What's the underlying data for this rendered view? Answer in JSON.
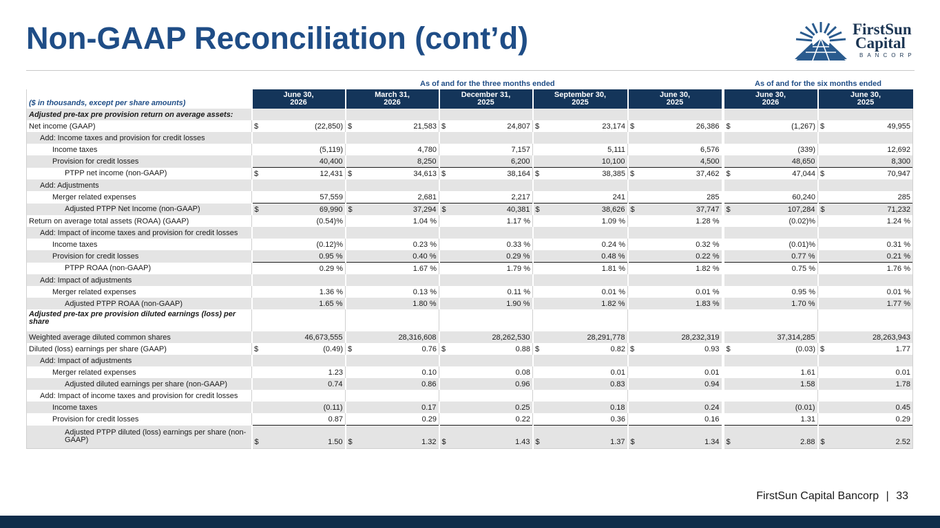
{
  "title": "Non-GAAP Reconciliation (cont’d)",
  "logo": {
    "line1": "FirstSun",
    "line2": "Capital",
    "line3": "BANCORP"
  },
  "groups": {
    "three_months": "As of and for the three months ended",
    "six_months": "As of and for the six months ended"
  },
  "corner_label": "($ in thousands, except per share amounts)",
  "columns": [
    {
      "line1": "June 30,",
      "line2": "2026"
    },
    {
      "line1": "March 31,",
      "line2": "2026"
    },
    {
      "line1": "December 31,",
      "line2": "2025"
    },
    {
      "line1": "September 30,",
      "line2": "2025"
    },
    {
      "line1": "June 30,",
      "line2": "2025"
    },
    {
      "line1": "June 30,",
      "line2": "2026"
    },
    {
      "line1": "June 30,",
      "line2": "2025"
    }
  ],
  "rows": [
    {
      "label": "Adjusted pre-tax pre provision return on average assets:",
      "style": "sec",
      "indent": 0,
      "values": [
        "",
        "",
        "",
        "",
        "",
        "",
        ""
      ]
    },
    {
      "label": "Net income (GAAP)",
      "indent": 0,
      "dollar": true,
      "values": [
        "(22,850)",
        "21,583",
        "24,807",
        "23,174",
        "26,386",
        "(1,267)",
        "49,955"
      ]
    },
    {
      "label": "Add: Income taxes and provision for credit losses",
      "indent": 1,
      "values": [
        "",
        "",
        "",
        "",
        "",
        "",
        ""
      ]
    },
    {
      "label": "Income taxes",
      "indent": 2,
      "values": [
        "(5,119)",
        "4,780",
        "7,157",
        "5,111",
        "6,576",
        "(339)",
        "12,692"
      ]
    },
    {
      "label": "Provision for credit losses",
      "indent": 2,
      "values": [
        "40,400",
        "8,250",
        "6,200",
        "10,100",
        "4,500",
        "48,650",
        "8,300"
      ]
    },
    {
      "label": "PTPP net income (non-GAAP)",
      "indent": 3,
      "dollar": true,
      "total": true,
      "values": [
        "12,431",
        "34,613",
        "38,164",
        "38,385",
        "37,462",
        "47,044",
        "70,947"
      ]
    },
    {
      "label": "Add: Adjustments",
      "indent": 1,
      "values": [
        "",
        "",
        "",
        "",
        "",
        "",
        ""
      ]
    },
    {
      "label": "Merger related expenses",
      "indent": 2,
      "values": [
        "57,559",
        "2,681",
        "2,217",
        "241",
        "285",
        "60,240",
        "285"
      ]
    },
    {
      "label": "Adjusted PTPP Net Income (non-GAAP)",
      "indent": 3,
      "dollar": true,
      "total": true,
      "values": [
        "69,990",
        "37,294",
        "40,381",
        "38,626",
        "37,747",
        "107,284",
        "71,232"
      ]
    },
    {
      "label": "Return on average total assets (ROAA) (GAAP)",
      "indent": 0,
      "values": [
        "(0.54)%",
        "1.04 %",
        "1.17 %",
        "1.09 %",
        "1.28 %",
        "(0.02)%",
        "1.24 %"
      ]
    },
    {
      "label": "Add: Impact of income taxes and provision for credit losses",
      "indent": 1,
      "values": [
        "",
        "",
        "",
        "",
        "",
        "",
        ""
      ]
    },
    {
      "label": "Income taxes",
      "indent": 2,
      "values": [
        "(0.12)%",
        "0.23 %",
        "0.33 %",
        "0.24 %",
        "0.32 %",
        "(0.01)%",
        "0.31 %"
      ]
    },
    {
      "label": "Provision for credit losses",
      "indent": 2,
      "values": [
        "0.95 %",
        "0.40 %",
        "0.29 %",
        "0.48 %",
        "0.22 %",
        "0.77 %",
        "0.21 %"
      ]
    },
    {
      "label": "PTPP ROAA (non-GAAP)",
      "indent": 3,
      "total": true,
      "values": [
        "0.29 %",
        "1.67 %",
        "1.79 %",
        "1.81 %",
        "1.82 %",
        "0.75 %",
        "1.76 %"
      ]
    },
    {
      "label": "Add: Impact of adjustments",
      "indent": 1,
      "values": [
        "",
        "",
        "",
        "",
        "",
        "",
        ""
      ]
    },
    {
      "label": "Merger related expenses",
      "indent": 2,
      "values": [
        "1.36 %",
        "0.13 %",
        "0.11 %",
        "0.01 %",
        "0.01 %",
        "0.95 %",
        "0.01 %"
      ]
    },
    {
      "label": "Adjusted PTPP ROAA (non-GAAP)",
      "indent": 3,
      "values": [
        "1.65 %",
        "1.80 %",
        "1.90 %",
        "1.82 %",
        "1.83 %",
        "1.70 %",
        "1.77 %"
      ]
    },
    {
      "label": "Adjusted pre-tax pre provision diluted earnings (loss) per share",
      "style": "sec",
      "tall": true,
      "indent": 0,
      "values": [
        "",
        "",
        "",
        "",
        "",
        "",
        ""
      ]
    },
    {
      "label": "Weighted average diluted common shares",
      "indent": 0,
      "values": [
        "46,673,555",
        "28,316,608",
        "28,262,530",
        "28,291,778",
        "28,232,319",
        "37,314,285",
        "28,263,943"
      ]
    },
    {
      "label": "Diluted (loss) earnings per share (GAAP)",
      "indent": 0,
      "dollar": true,
      "values": [
        "(0.49)",
        "0.76",
        "0.88",
        "0.82",
        "0.93",
        "(0.03)",
        "1.77"
      ]
    },
    {
      "label": "Add: Impact of adjustments",
      "indent": 1,
      "values": [
        "",
        "",
        "",
        "",
        "",
        "",
        ""
      ]
    },
    {
      "label": "Merger related expenses",
      "indent": 2,
      "values": [
        "1.23",
        "0.10",
        "0.08",
        "0.01",
        "0.01",
        "1.61",
        "0.01"
      ]
    },
    {
      "label": "Adjusted diluted earnings per share (non-GAAP)",
      "indent": 3,
      "values": [
        "0.74",
        "0.86",
        "0.96",
        "0.83",
        "0.94",
        "1.58",
        "1.78"
      ]
    },
    {
      "label": "Add: Impact of income taxes and provision for credit losses",
      "indent": 1,
      "values": [
        "",
        "",
        "",
        "",
        "",
        "",
        ""
      ]
    },
    {
      "label": "Income taxes",
      "indent": 2,
      "values": [
        "(0.11)",
        "0.17",
        "0.25",
        "0.18",
        "0.24",
        "(0.01)",
        "0.45"
      ]
    },
    {
      "label": "Provision for credit losses",
      "indent": 2,
      "values": [
        "0.87",
        "0.29",
        "0.22",
        "0.36",
        "0.16",
        "1.31",
        "0.29"
      ]
    },
    {
      "label": "Adjusted PTPP diluted (loss) earnings per share (non-GAAP)",
      "indent": 3,
      "dollar": true,
      "total": true,
      "dtotal": true,
      "tall": true,
      "values": [
        "1.50",
        "1.32",
        "1.43",
        "1.37",
        "1.34",
        "2.88",
        "2.52"
      ]
    }
  ],
  "footer": {
    "company": "FirstSun Capital Bancorp",
    "separator": "|",
    "page": "33"
  },
  "colors": {
    "title": "#1f4d86",
    "header_bg": "#14355a",
    "shade": "#e4e4e4",
    "bar": "#0f2d4a"
  },
  "icons": {
    "logo": "sunburst-logo-icon"
  }
}
